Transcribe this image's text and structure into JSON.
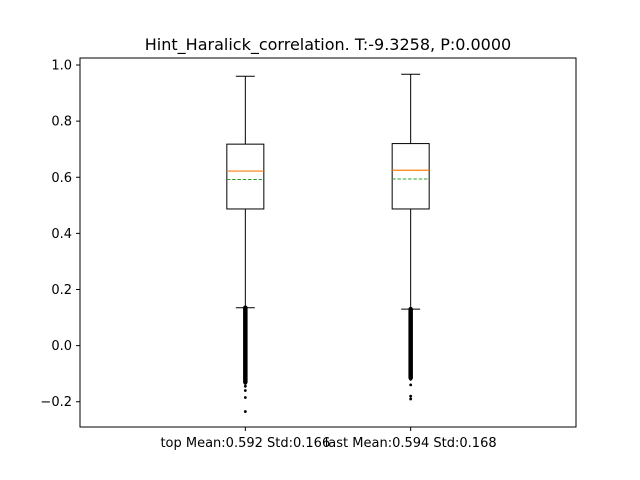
{
  "chart_data": {
    "type": "box",
    "title": "Hint_Haralick_correlation. T:-9.3258, P:0.0000",
    "xlabel": "",
    "ylabel": "",
    "ylim": [
      -0.29,
      1.025
    ],
    "yticks": [
      -0.2,
      0.0,
      0.2,
      0.4,
      0.6,
      0.8,
      1.0
    ],
    "ytick_labels": [
      "−0.2",
      "0.0",
      "0.2",
      "0.4",
      "0.6",
      "0.8",
      "1.0"
    ],
    "grid": false,
    "legend": "none",
    "colors": {
      "median": "#ff7f0e",
      "mean": "#2ca02c",
      "box": "#000000"
    },
    "categories": [
      "top Mean:0.592 Std:0.166",
      "last Mean:0.594 Std:0.168"
    ],
    "boxes": [
      {
        "label": "top Mean:0.592 Std:0.166",
        "whisker_low": 0.135,
        "q1": 0.487,
        "median": 0.622,
        "q3": 0.718,
        "whisker_high": 0.96,
        "mean": 0.592,
        "dense_outlier_range": [
          -0.13,
          0.135
        ],
        "outliers": [
          -0.135,
          -0.145,
          -0.16,
          -0.185,
          -0.235
        ]
      },
      {
        "label": "last Mean:0.594 Std:0.168",
        "whisker_low": 0.13,
        "q1": 0.487,
        "median": 0.625,
        "q3": 0.72,
        "whisker_high": 0.967,
        "mean": 0.594,
        "dense_outlier_range": [
          -0.115,
          0.13
        ],
        "outliers": [
          -0.12,
          -0.14,
          -0.18,
          -0.19
        ]
      }
    ]
  }
}
